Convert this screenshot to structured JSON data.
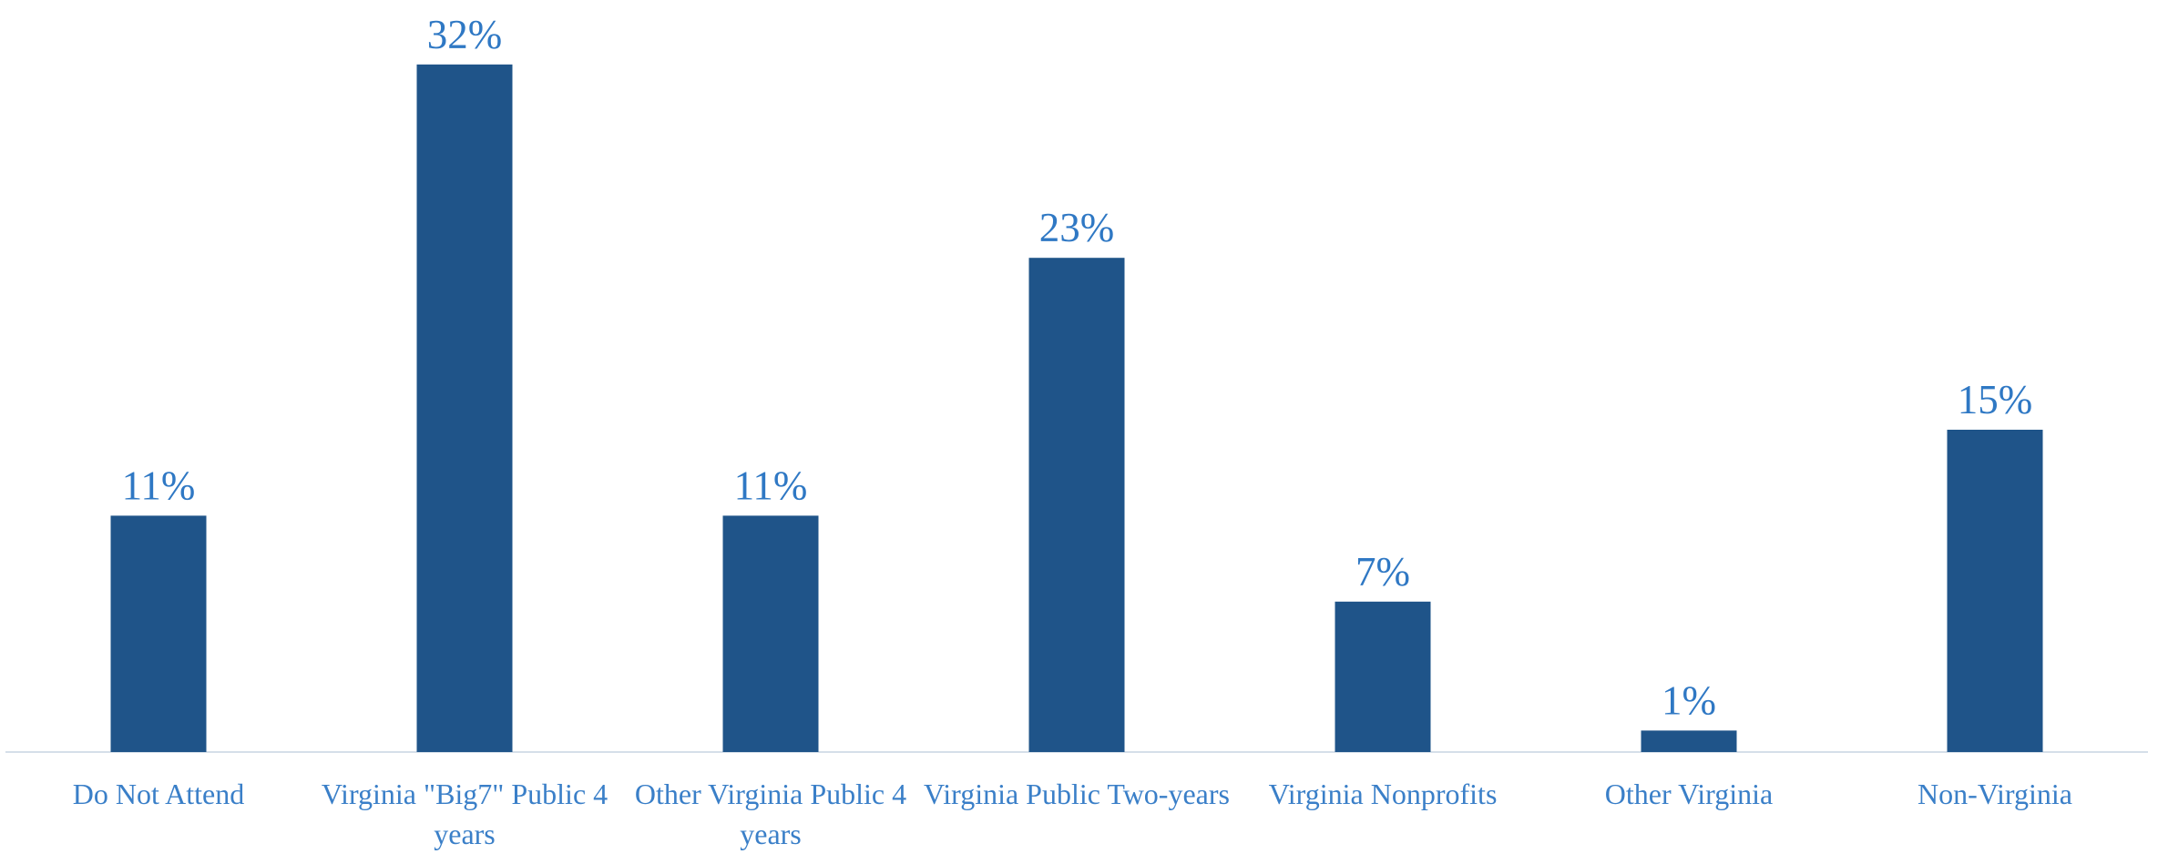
{
  "chart_data": {
    "type": "bar",
    "categories": [
      "Do Not Attend",
      "Virginia \"Big7\" Public 4 years",
      "Other Virginia Public 4 years",
      "Virginia Public Two-years",
      "Virginia Nonprofits",
      "Other Virginia",
      "Non-Virginia"
    ],
    "values": [
      11,
      32,
      11,
      23,
      7,
      1,
      15
    ],
    "value_labels": [
      "11%",
      "32%",
      "11%",
      "23%",
      "7%",
      "1%",
      "15%"
    ],
    "color": "#1f5489"
  }
}
